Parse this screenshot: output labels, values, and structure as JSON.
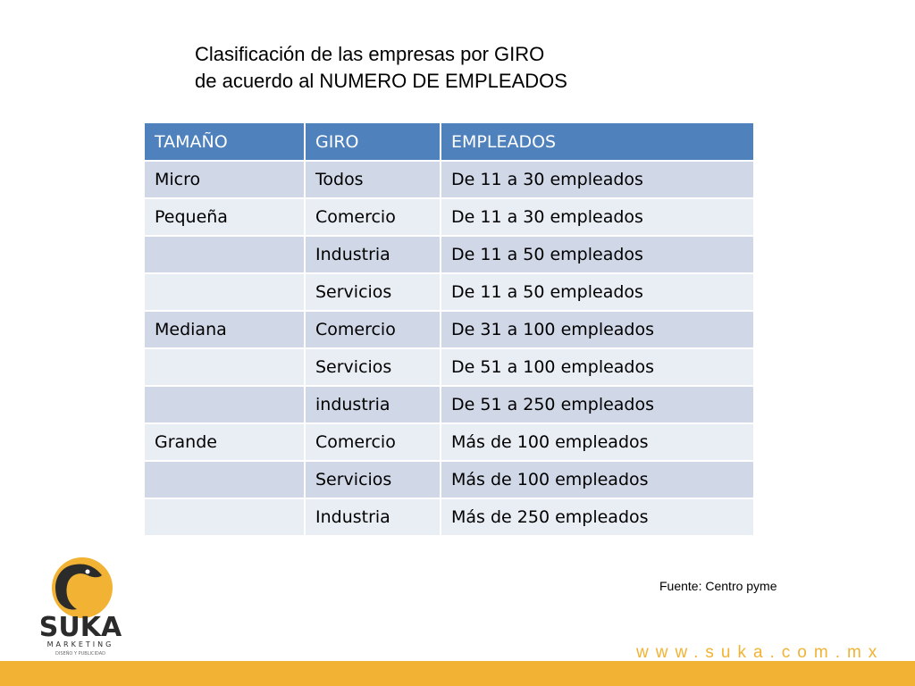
{
  "title": {
    "line1": "Clasificación de las empresas por GIRO",
    "line2": "de acuerdo al NUMERO DE EMPLEADOS"
  },
  "table": {
    "headers": [
      "TAMAÑO",
      "GIRO",
      "EMPLEADOS"
    ],
    "rows": [
      [
        "Micro",
        "Todos",
        "De 11 a 30 empleados"
      ],
      [
        "Pequeña",
        "Comercio",
        "De 11 a 30 empleados"
      ],
      [
        "",
        "Industria",
        "De 11 a 50 empleados"
      ],
      [
        "",
        "Servicios",
        "De 11 a 50 empleados"
      ],
      [
        "Mediana",
        "Comercio",
        "De 31 a 100 empleados"
      ],
      [
        "",
        "Servicios",
        "De 51 a 100 empleados"
      ],
      [
        "",
        "industria",
        "De 51 a 250 empleados"
      ],
      [
        "Grande",
        "Comercio",
        "Más de 100 empleados"
      ],
      [
        "",
        "Servicios",
        "Más de 100 empleados"
      ],
      [
        "",
        "Industria",
        "Más de 250 empleados"
      ]
    ]
  },
  "source": "Fuente: Centro pyme",
  "logo": {
    "name": "SUKA",
    "sub1": "MARKETING",
    "sub2": "DISEÑO Y PUBLICIDAD"
  },
  "url": "www.suka.com.mx",
  "colors": {
    "header_bg": "#4f81bd",
    "row_odd": "#d0d8e8",
    "row_even": "#e9edf4",
    "brand_accent": "#f2b233",
    "logo_dark": "#2b2b2b"
  }
}
